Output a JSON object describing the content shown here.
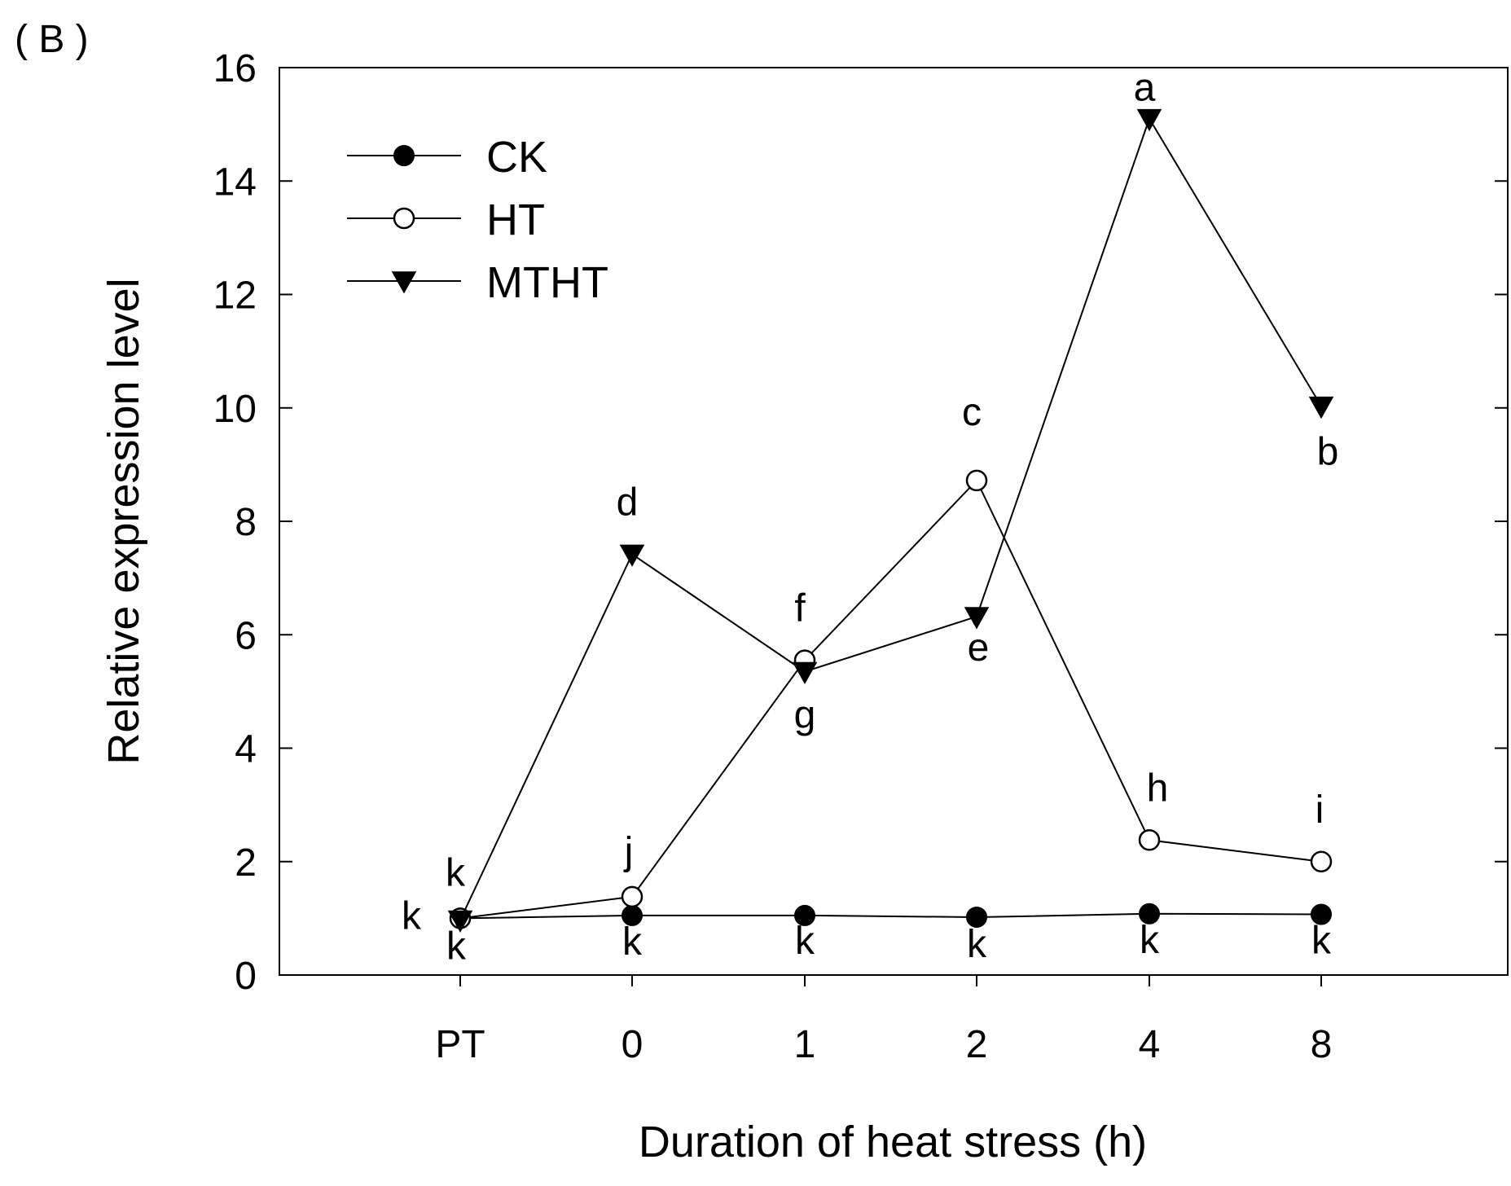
{
  "chart_data": {
    "type": "line",
    "panel_label": "( B )",
    "xlabel": "Duration of heat stress (h)",
    "ylabel": "Relative expression level",
    "categories": [
      "PT",
      "0",
      "1",
      "2",
      "4",
      "8"
    ],
    "ylim": [
      0,
      16
    ],
    "yticks": [
      0,
      2,
      4,
      6,
      8,
      10,
      12,
      14,
      16
    ],
    "ytick_labels": [
      "0",
      "2",
      "4",
      "6",
      "8",
      "10",
      "12",
      "14",
      "16"
    ],
    "legend_position": "top-left",
    "series": [
      {
        "name": "CK",
        "marker": "filled-circle",
        "values": [
          1.0,
          1.05,
          1.05,
          1.02,
          1.08,
          1.07
        ]
      },
      {
        "name": "HT",
        "marker": "open-circle",
        "values": [
          1.0,
          1.38,
          5.55,
          8.72,
          2.38,
          2.0
        ]
      },
      {
        "name": "MTHT",
        "marker": "filled-triangle-down",
        "values": [
          0.97,
          7.42,
          5.35,
          6.32,
          15.1,
          10.03
        ]
      }
    ],
    "significance_labels": {
      "CK": [
        "k",
        "k",
        "k",
        "k",
        "k",
        "k"
      ],
      "HT": [
        "k",
        "j",
        "f",
        "c",
        "h",
        "i"
      ],
      "MTHT": [
        "k",
        "d",
        "g",
        "e",
        "a",
        "b"
      ]
    }
  }
}
